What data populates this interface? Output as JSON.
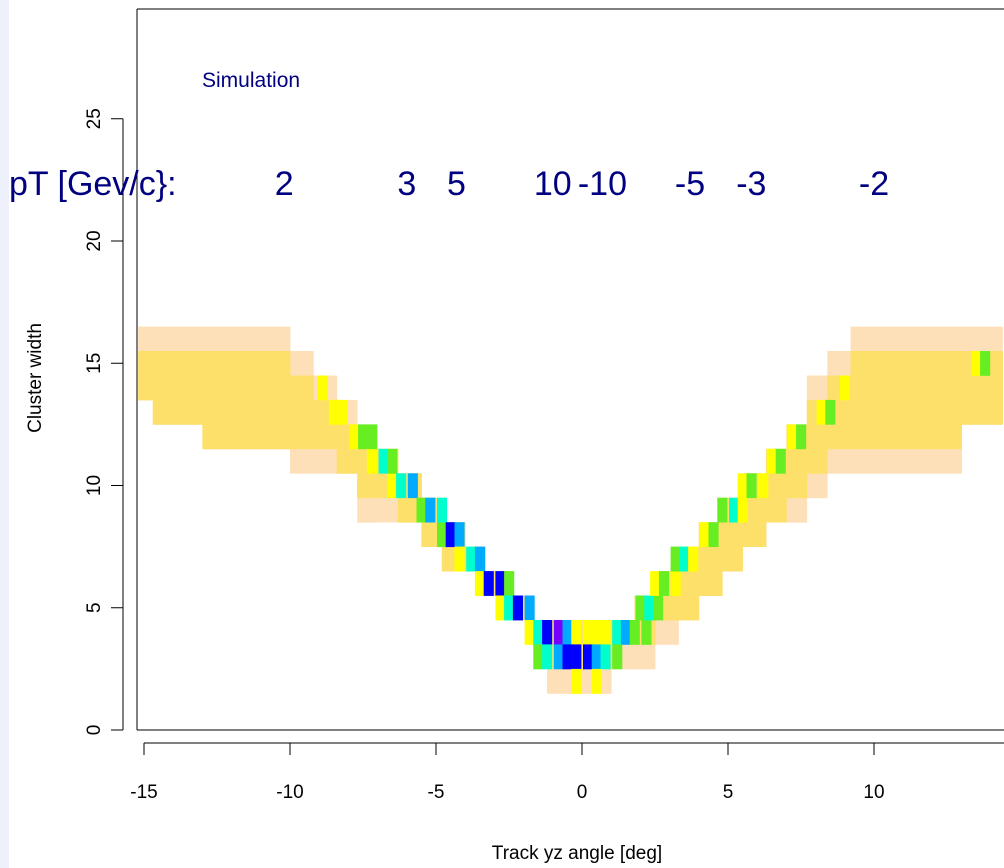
{
  "chart_data": {
    "type": "heatmap",
    "xlabel": "Track yz angle [deg]",
    "ylabel": "Cluster width",
    "xlim": [
      -15.2,
      14.4
    ],
    "ylim": [
      -0.5,
      29.5
    ],
    "x_ticks": [
      -15,
      -10,
      -5,
      0,
      5,
      10
    ],
    "x_tick_labels": [
      "-15",
      "-10",
      "-5",
      "0",
      "5",
      "10"
    ],
    "y_ticks": [
      0,
      5,
      10,
      15,
      20,
      25
    ],
    "y_tick_labels": [
      "0",
      "5",
      "10",
      "15",
      "20",
      "25"
    ],
    "annotation_label": "Simulation",
    "pt_prefix": "pT [Gev/c}:",
    "pt_labels": [
      {
        "text": "2",
        "x": -10.2
      },
      {
        "text": "3",
        "x": -6.0
      },
      {
        "text": "5",
        "x": -4.3
      },
      {
        "text": "10",
        "x": -1.0
      },
      {
        "text": "-10",
        "x": 0.7
      },
      {
        "text": "-5",
        "x": 3.7
      },
      {
        "text": "-3",
        "x": 5.8
      },
      {
        "text": "-2",
        "x": 10.0
      }
    ],
    "color_levels": {
      "1": "#fde0b8",
      "2": "#fde06a",
      "3": "#ffff00",
      "4": "#66ee22",
      "5": "#00ffcc",
      "6": "#00aaff",
      "7": "#0000ff",
      "8": "#7700ff"
    },
    "bin_width_deg": 0.333,
    "bands": [
      {
        "x0": -15.2,
        "x1": -14.7,
        "w0": 14,
        "w1": 15,
        "lo": 13.5,
        "hi": 16.5
      },
      {
        "x0": -14.7,
        "x1": -13.0,
        "w0": 13,
        "w1": 15,
        "lo": 12.5,
        "hi": 16.5
      },
      {
        "x0": -13.0,
        "x1": -10.0,
        "w0": 12,
        "w1": 15,
        "lo": 11.5,
        "hi": 16.5
      },
      {
        "x0": -10.0,
        "x1": -9.2,
        "w0": 12,
        "w1": 14,
        "lo": 10.5,
        "hi": 15.5
      },
      {
        "x0": -9.2,
        "x1": -8.4,
        "w0": 12,
        "w1": 13,
        "lo": 10.5,
        "hi": 14.5
      },
      {
        "x0": -8.4,
        "x1": -7.7,
        "w0": 11,
        "w1": 12,
        "lo": 10.5,
        "hi": 13.5
      },
      {
        "x0": -7.7,
        "x1": -7.0,
        "w0": 10,
        "w1": 11,
        "lo": 8.5,
        "hi": 12.5
      },
      {
        "x0": -7.0,
        "x1": -6.3,
        "w0": 10,
        "w1": 11,
        "lo": 8.5,
        "hi": 11.5
      },
      {
        "x0": -6.3,
        "x1": -5.5,
        "w0": 9,
        "w1": 10,
        "lo": 8.5,
        "hi": 10.5
      },
      {
        "x0": -5.5,
        "x1": -4.8,
        "w0": 8,
        "w1": 9,
        "lo": 7.5,
        "hi": 9.5
      },
      {
        "x0": -4.8,
        "x1": -4.0,
        "w0": 7,
        "w1": 8,
        "lo": 6.5,
        "hi": 8.5
      },
      {
        "x0": -4.0,
        "x1": -3.3,
        "w0": 7,
        "w1": 7,
        "lo": 6.5,
        "hi": 7.5
      },
      {
        "x0": -3.3,
        "x1": -2.5,
        "w0": 6,
        "w1": 6,
        "lo": 5.5,
        "hi": 6.5
      },
      {
        "x0": -2.5,
        "x1": -1.8,
        "w0": 5,
        "w1": 5,
        "lo": 4.5,
        "hi": 5.5
      },
      {
        "x0": -1.8,
        "x1": -1.2,
        "w0": 4,
        "w1": 4,
        "lo": 3.5,
        "hi": 4.5
      },
      {
        "x0": -1.2,
        "x1": 0.0,
        "w0": 3,
        "w1": 4,
        "lo": 1.5,
        "hi": 4.5
      },
      {
        "x0": 0.0,
        "x1": 1.0,
        "w0": 3,
        "w1": 4,
        "lo": 1.5,
        "hi": 4.5
      },
      {
        "x0": 1.0,
        "x1": 1.8,
        "w0": 4,
        "w1": 4,
        "lo": 2.5,
        "hi": 4.5
      },
      {
        "x0": 1.8,
        "x1": 2.5,
        "w0": 4,
        "w1": 5,
        "lo": 2.5,
        "hi": 5.5
      },
      {
        "x0": 2.5,
        "x1": 3.3,
        "w0": 5,
        "w1": 6,
        "lo": 3.5,
        "hi": 6.5
      },
      {
        "x0": 3.3,
        "x1": 4.0,
        "w0": 5,
        "w1": 7,
        "lo": 4.5,
        "hi": 7.5
      },
      {
        "x0": 4.0,
        "x1": 4.8,
        "w0": 6,
        "w1": 8,
        "lo": 5.5,
        "hi": 8.5
      },
      {
        "x0": 4.8,
        "x1": 5.5,
        "w0": 7,
        "w1": 9,
        "lo": 6.5,
        "hi": 9.5
      },
      {
        "x0": 5.5,
        "x1": 6.3,
        "w0": 8,
        "w1": 10,
        "lo": 7.5,
        "hi": 10.5
      },
      {
        "x0": 6.3,
        "x1": 7.0,
        "w0": 9,
        "w1": 11,
        "lo": 8.5,
        "hi": 11.5
      },
      {
        "x0": 7.0,
        "x1": 7.7,
        "w0": 10,
        "w1": 12,
        "lo": 8.5,
        "hi": 12.5
      },
      {
        "x0": 7.7,
        "x1": 8.4,
        "w0": 11,
        "w1": 13,
        "lo": 9.5,
        "hi": 14.5
      },
      {
        "x0": 8.4,
        "x1": 9.2,
        "w0": 12,
        "w1": 14,
        "lo": 10.5,
        "hi": 15.5
      },
      {
        "x0": 9.2,
        "x1": 10.0,
        "w0": 12,
        "w1": 15,
        "lo": 10.5,
        "hi": 16.5
      },
      {
        "x0": 10.0,
        "x1": 13.0,
        "w0": 12,
        "w1": 15,
        "lo": 10.5,
        "hi": 16.5
      },
      {
        "x0": 13.0,
        "x1": 14.4,
        "w0": 13,
        "w1": 15,
        "lo": 12.5,
        "hi": 16.5
      }
    ],
    "core_cells": [
      {
        "x": -8.9,
        "y": 14,
        "level": 3
      },
      {
        "x": -8.5,
        "y": 13,
        "level": 3
      },
      {
        "x": -8.2,
        "y": 13,
        "level": 3
      },
      {
        "x": -7.8,
        "y": 12,
        "level": 3
      },
      {
        "x": -7.5,
        "y": 12,
        "level": 4
      },
      {
        "x": -7.2,
        "y": 11,
        "level": 3
      },
      {
        "x": -7.2,
        "y": 12,
        "level": 4
      },
      {
        "x": -6.8,
        "y": 11,
        "level": 5
      },
      {
        "x": -6.5,
        "y": 10,
        "level": 3
      },
      {
        "x": -6.5,
        "y": 11,
        "level": 4
      },
      {
        "x": -6.2,
        "y": 10,
        "level": 5
      },
      {
        "x": -5.8,
        "y": 10,
        "level": 6
      },
      {
        "x": -5.5,
        "y": 9,
        "level": 4
      },
      {
        "x": -5.2,
        "y": 9,
        "level": 6
      },
      {
        "x": -4.8,
        "y": 8,
        "level": 4
      },
      {
        "x": -4.8,
        "y": 9,
        "level": 5
      },
      {
        "x": -4.5,
        "y": 8,
        "level": 7
      },
      {
        "x": -4.2,
        "y": 8,
        "level": 6
      },
      {
        "x": -4.2,
        "y": 7,
        "level": 3
      },
      {
        "x": -3.8,
        "y": 7,
        "level": 5
      },
      {
        "x": -3.5,
        "y": 7,
        "level": 6
      },
      {
        "x": -3.5,
        "y": 6,
        "level": 3
      },
      {
        "x": -3.2,
        "y": 6,
        "level": 7
      },
      {
        "x": -2.8,
        "y": 6,
        "level": 7
      },
      {
        "x": -2.5,
        "y": 6,
        "level": 4
      },
      {
        "x": -2.8,
        "y": 5,
        "level": 3
      },
      {
        "x": -2.5,
        "y": 5,
        "level": 5
      },
      {
        "x": -2.2,
        "y": 5,
        "level": 7
      },
      {
        "x": -1.8,
        "y": 5,
        "level": 6
      },
      {
        "x": -1.8,
        "y": 4,
        "level": 3
      },
      {
        "x": -1.5,
        "y": 4,
        "level": 5
      },
      {
        "x": -1.2,
        "y": 4,
        "level": 7
      },
      {
        "x": -0.8,
        "y": 4,
        "level": 8
      },
      {
        "x": -0.5,
        "y": 4,
        "level": 6
      },
      {
        "x": -0.2,
        "y": 4,
        "level": 3
      },
      {
        "x": 0.2,
        "y": 4,
        "level": 3
      },
      {
        "x": 0.5,
        "y": 4,
        "level": 3
      },
      {
        "x": 0.8,
        "y": 4,
        "level": 3
      },
      {
        "x": 1.2,
        "y": 4,
        "level": 5
      },
      {
        "x": 1.5,
        "y": 4,
        "level": 6
      },
      {
        "x": 1.8,
        "y": 4,
        "level": 4
      },
      {
        "x": 2.2,
        "y": 4,
        "level": 4
      },
      {
        "x": -1.5,
        "y": 3,
        "level": 4
      },
      {
        "x": -1.2,
        "y": 3,
        "level": 5
      },
      {
        "x": -0.8,
        "y": 3,
        "level": 6
      },
      {
        "x": -0.5,
        "y": 3,
        "level": 7
      },
      {
        "x": -0.2,
        "y": 3,
        "level": 7
      },
      {
        "x": 0.2,
        "y": 3,
        "level": 7
      },
      {
        "x": 0.5,
        "y": 3,
        "level": 6
      },
      {
        "x": 0.8,
        "y": 3,
        "level": 5
      },
      {
        "x": 1.2,
        "y": 3,
        "level": 4
      },
      {
        "x": -0.2,
        "y": 2,
        "level": 3
      },
      {
        "x": 0.5,
        "y": 2,
        "level": 3
      },
      {
        "x": 2.0,
        "y": 5,
        "level": 4
      },
      {
        "x": 2.3,
        "y": 5,
        "level": 5
      },
      {
        "x": 2.6,
        "y": 5,
        "level": 4
      },
      {
        "x": 2.5,
        "y": 6,
        "level": 3
      },
      {
        "x": 2.8,
        "y": 6,
        "level": 4
      },
      {
        "x": 3.2,
        "y": 6,
        "level": 3
      },
      {
        "x": 3.2,
        "y": 7,
        "level": 4
      },
      {
        "x": 3.5,
        "y": 7,
        "level": 5
      },
      {
        "x": 3.8,
        "y": 7,
        "level": 3
      },
      {
        "x": 4.2,
        "y": 8,
        "level": 3
      },
      {
        "x": 4.5,
        "y": 8,
        "level": 4
      },
      {
        "x": 4.8,
        "y": 9,
        "level": 4
      },
      {
        "x": 5.2,
        "y": 9,
        "level": 5
      },
      {
        "x": 5.5,
        "y": 9,
        "level": 3
      },
      {
        "x": 5.5,
        "y": 10,
        "level": 3
      },
      {
        "x": 5.8,
        "y": 10,
        "level": 4
      },
      {
        "x": 6.2,
        "y": 10,
        "level": 3
      },
      {
        "x": 6.5,
        "y": 11,
        "level": 3
      },
      {
        "x": 6.8,
        "y": 11,
        "level": 4
      },
      {
        "x": 7.2,
        "y": 12,
        "level": 3
      },
      {
        "x": 7.5,
        "y": 12,
        "level": 4
      },
      {
        "x": 8.2,
        "y": 13,
        "level": 3
      },
      {
        "x": 8.5,
        "y": 13,
        "level": 4
      },
      {
        "x": 9.0,
        "y": 14,
        "level": 3
      },
      {
        "x": 13.5,
        "y": 15,
        "level": 3
      },
      {
        "x": 13.8,
        "y": 15,
        "level": 4
      }
    ]
  }
}
